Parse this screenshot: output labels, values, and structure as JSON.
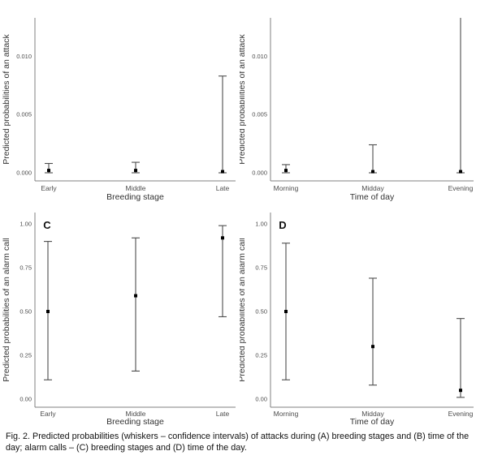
{
  "figure": {
    "caption": "Fig. 2. Predicted probabilities (whiskers – confidence intervals) of attacks during (A) breeding stages and (B) time of the day; alarm calls – (C) breeding stages and (D) time of the day."
  },
  "colors": {
    "axis_line": "#808080",
    "whisker": "#4d4d4d",
    "point": "#000000",
    "tick_text": "#4d4d4d",
    "title_text": "#333333",
    "panel_letter": "#111111",
    "background": "#ffffff"
  },
  "chart_data": [
    {
      "panel": "A",
      "type": "pointrange",
      "panel_letter": "",
      "xlabel": "Breeding stage",
      "ylabel": "Predicted probabilities of an attack",
      "categories": [
        "Early",
        "Middle",
        "Late"
      ],
      "estimates": [
        0.0002,
        0.0002,
        0.0001
      ],
      "ci_low": [
        0.0,
        0.0,
        0.0
      ],
      "ci_high": [
        0.0008,
        0.0009,
        0.0083
      ],
      "upper_clipped": [
        false,
        false,
        false
      ],
      "ytick_values": [
        0.0,
        0.005,
        0.01
      ],
      "ytick_labels": [
        "0.000",
        "0.005",
        "0.010"
      ],
      "ylim": [
        0.0,
        0.013
      ],
      "grid": "off",
      "legend": "none"
    },
    {
      "panel": "B",
      "type": "pointrange",
      "panel_letter": "",
      "xlabel": "Time of day",
      "ylabel": "Predicted probabilities of an attack",
      "categories": [
        "Morning",
        "Midday",
        "Evening"
      ],
      "estimates": [
        0.0002,
        0.0001,
        0.0001
      ],
      "ci_low": [
        0.0,
        0.0,
        0.0
      ],
      "ci_high": [
        0.0007,
        0.0024,
        0.0135
      ],
      "upper_clipped": [
        false,
        false,
        true
      ],
      "ytick_values": [
        0.0,
        0.005,
        0.01
      ],
      "ytick_labels": [
        "0.000",
        "0.005",
        "0.010"
      ],
      "ylim": [
        0.0,
        0.013
      ],
      "grid": "off",
      "legend": "none"
    },
    {
      "panel": "C",
      "type": "pointrange",
      "panel_letter": "C",
      "xlabel": "Breeding stage",
      "ylabel": "Predicted probabilities of an alarm call",
      "categories": [
        "Early",
        "Middle",
        "Late"
      ],
      "estimates": [
        0.5,
        0.59,
        0.92
      ],
      "ci_low": [
        0.11,
        0.16,
        0.47
      ],
      "ci_high": [
        0.9,
        0.92,
        0.99
      ],
      "upper_clipped": [
        false,
        false,
        false
      ],
      "ytick_values": [
        0.0,
        0.25,
        0.5,
        0.75,
        1.0
      ],
      "ytick_labels": [
        "0.00",
        "0.25",
        "0.50",
        "0.75",
        "1.00"
      ],
      "ylim": [
        0.0,
        1.0
      ],
      "grid": "off",
      "legend": "none"
    },
    {
      "panel": "D",
      "type": "pointrange",
      "panel_letter": "D",
      "xlabel": "Time of day",
      "ylabel": "Predicted probabilities of an alarm call",
      "categories": [
        "Morning",
        "Midday",
        "Evening"
      ],
      "estimates": [
        0.5,
        0.3,
        0.05
      ],
      "ci_low": [
        0.11,
        0.08,
        0.01
      ],
      "ci_high": [
        0.89,
        0.69,
        0.46
      ],
      "upper_clipped": [
        false,
        false,
        false
      ],
      "ytick_values": [
        0.0,
        0.25,
        0.5,
        0.75,
        1.0
      ],
      "ytick_labels": [
        "0.00",
        "0.25",
        "0.50",
        "0.75",
        "1.00"
      ],
      "ylim": [
        0.0,
        1.0
      ],
      "grid": "off",
      "legend": "none"
    }
  ]
}
